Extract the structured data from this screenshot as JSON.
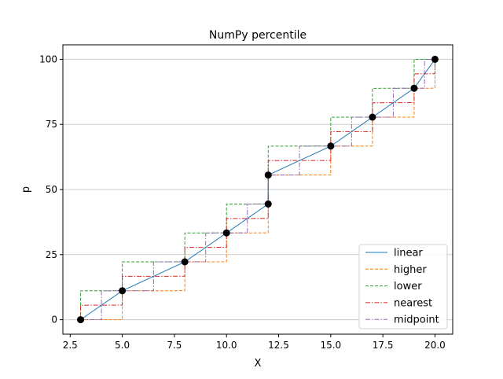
{
  "chart_data": {
    "type": "line",
    "title": "NumPy percentile",
    "xlabel": "X",
    "ylabel": "p",
    "xlim": [
      2.15,
      20.85
    ],
    "ylim": [
      -5.56,
      105.56
    ],
    "xticks": [
      2.5,
      5.0,
      7.5,
      10.0,
      12.5,
      15.0,
      17.5,
      20.0
    ],
    "xtick_labels": [
      "2.5",
      "5.0",
      "7.5",
      "10.0",
      "12.5",
      "15.0",
      "17.5",
      "20.0"
    ],
    "yticks": [
      0,
      25,
      50,
      75,
      100
    ],
    "ytick_labels": [
      "0",
      "25",
      "50",
      "75",
      "100"
    ],
    "grid": "y",
    "legend_position": "lower-right",
    "data_sorted": [
      3,
      5,
      8,
      10,
      12,
      12,
      15,
      17,
      19,
      20
    ],
    "points": {
      "x": [
        3,
        5,
        8,
        10,
        12,
        12,
        15,
        17,
        19,
        20
      ],
      "p": [
        0,
        11.11,
        22.22,
        33.33,
        44.44,
        55.56,
        66.67,
        77.78,
        88.89,
        100
      ]
    },
    "series": [
      {
        "name": "linear",
        "color": "#1f77b4",
        "style": "solid"
      },
      {
        "name": "higher",
        "color": "#ff7f0e",
        "style": "dashed"
      },
      {
        "name": "lower",
        "color": "#2ca02c",
        "style": "dashed"
      },
      {
        "name": "nearest",
        "color": "#d62728",
        "style": "dashdot"
      },
      {
        "name": "midpoint",
        "color": "#9467bd",
        "style": "dashdot"
      }
    ]
  }
}
